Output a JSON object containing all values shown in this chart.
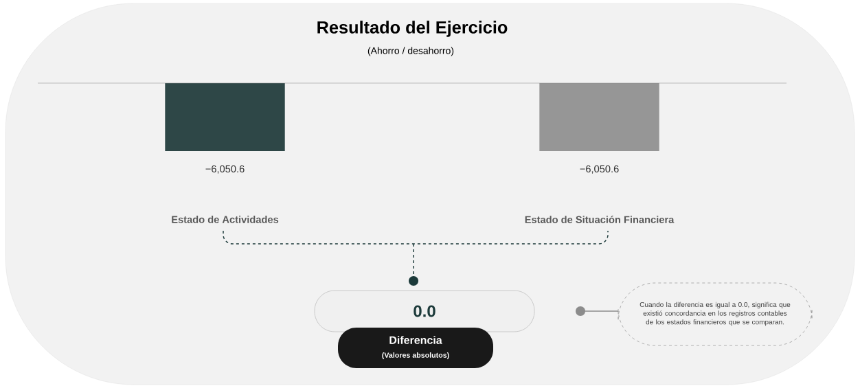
{
  "chart_data": {
    "type": "bar",
    "title": "Resultado del Ejercicio",
    "subtitle": "(Ahorro / desahorro)",
    "categories": [
      "Estado de Actividades",
      "Estado de Situación Financiera"
    ],
    "values": [
      -6050.6,
      -6050.6
    ],
    "colors": [
      "#2e4747",
      "#969696"
    ],
    "value_labels": [
      "−6,050.6",
      "−6,050.6"
    ],
    "annotations": [
      "0.0",
      "Diferencia",
      "(Valores absolutos)",
      "Cuando la diferencia es igual a 0.0, significa que existió concordancia en los registros contables de los estados financieros que se comparan."
    ]
  }
}
